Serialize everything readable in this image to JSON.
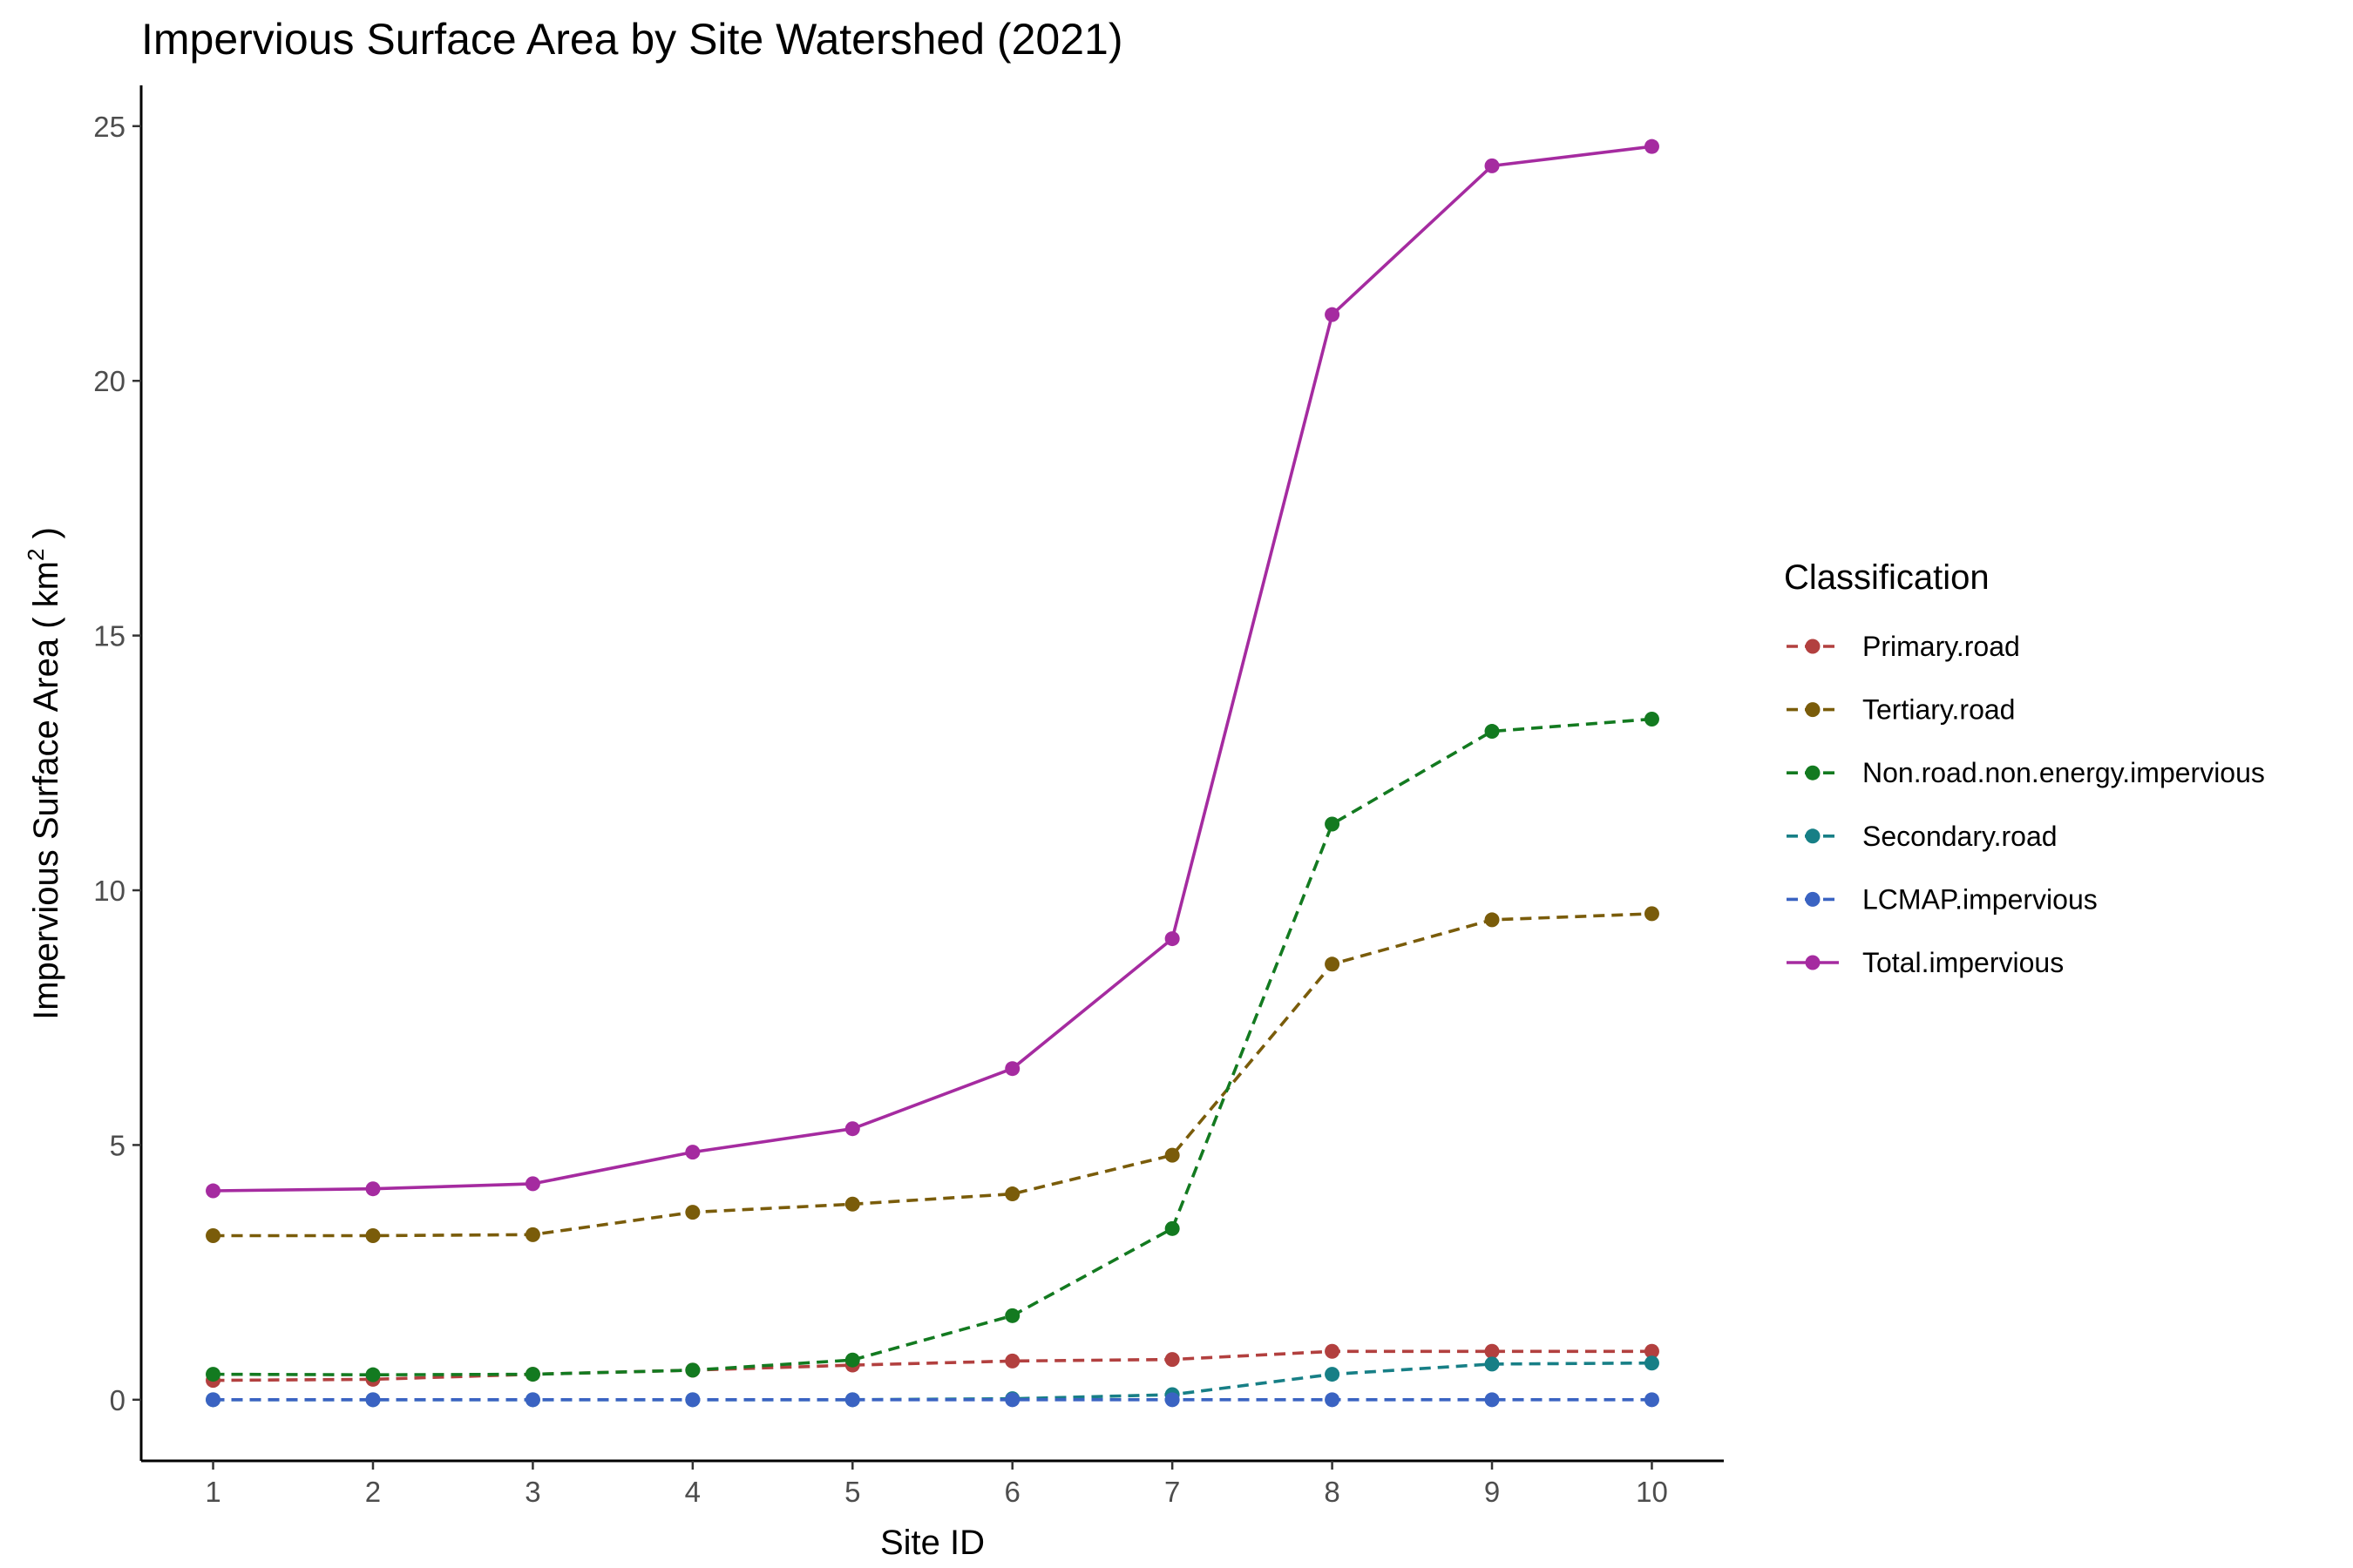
{
  "chart_data": {
    "type": "line",
    "title": "Impervious Surface Area by Site Watershed (2021)",
    "xlabel": "Site ID",
    "ylabel": {
      "prefix": "Impervious Surface Area ( km",
      "superscript": "2",
      "suffix": " )"
    },
    "x": [
      1,
      2,
      3,
      4,
      5,
      6,
      7,
      8,
      9,
      10
    ],
    "xlim": [
      0.55,
      10.45
    ],
    "ylim": [
      -1.2,
      25.8
    ],
    "yticks": [
      0,
      5,
      10,
      15,
      20,
      25
    ],
    "grid": false,
    "legend": {
      "title": "Classification",
      "position": "right"
    },
    "series": [
      {
        "name": "Primary.road",
        "color": "#b2403f",
        "dash": "dashed",
        "values": [
          0.38,
          0.4,
          0.5,
          0.58,
          0.68,
          0.76,
          0.79,
          0.95,
          0.95,
          0.95
        ]
      },
      {
        "name": "Tertiary.road",
        "color": "#7a5c0a",
        "dash": "dashed",
        "values": [
          3.22,
          3.22,
          3.24,
          3.68,
          3.84,
          4.04,
          4.8,
          8.55,
          9.42,
          9.54
        ]
      },
      {
        "name": "Non.road.non.energy.impervious",
        "color": "#137a20",
        "dash": "dashed",
        "values": [
          0.5,
          0.49,
          0.5,
          0.58,
          0.78,
          1.65,
          3.36,
          11.3,
          13.12,
          13.36
        ]
      },
      {
        "name": "Secondary.road",
        "color": "#177f86",
        "dash": "dashed",
        "values": [
          0.0,
          0.0,
          0.0,
          0.0,
          0.0,
          0.02,
          0.1,
          0.5,
          0.7,
          0.72
        ]
      },
      {
        "name": "LCMAP.impervious",
        "color": "#3a63c2",
        "dash": "dashed",
        "values": [
          0.0,
          0.0,
          0.0,
          0.0,
          0.0,
          0.0,
          0.0,
          0.0,
          0.0,
          0.0
        ]
      },
      {
        "name": "Total.impervious",
        "color": "#a52ba0",
        "dash": "solid",
        "values": [
          4.1,
          4.14,
          4.24,
          4.86,
          5.32,
          6.5,
          9.05,
          21.3,
          24.22,
          24.6
        ]
      }
    ]
  }
}
